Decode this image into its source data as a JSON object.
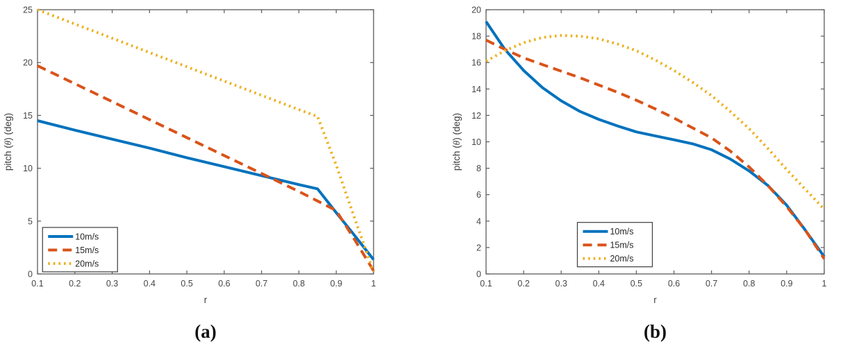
{
  "captions": {
    "a": "(a)",
    "b": "(b)"
  },
  "colors": {
    "series_blue": "#0072BD",
    "series_red": "#D95319",
    "series_yellow": "#EDB120",
    "axis_line": "#5a5a5a",
    "tick_label": "#464646",
    "axis_label": "#3d3d3d",
    "legend_border": "#3c3c3c",
    "legend_text": "#262626",
    "background": "#ffffff"
  },
  "chart_data": [
    {
      "id": "a",
      "type": "line",
      "title": "",
      "xlabel": "r",
      "ylabel": "pitch (θ) (deg)",
      "xlim": [
        0.1,
        1
      ],
      "ylim": [
        0,
        25
      ],
      "grid": false,
      "xticks": [
        "0.1",
        "0.2",
        "0.3",
        "0.4",
        "0.5",
        "0.6",
        "0.7",
        "0.8",
        "0.9",
        "1"
      ],
      "yticks": [
        "0",
        "5",
        "10",
        "15",
        "20",
        "25"
      ],
      "legend": {
        "position": "bottom-left-inside",
        "fx": 0.015,
        "fy": 0.824
      },
      "x": [
        0.1,
        0.2,
        0.3,
        0.4,
        0.5,
        0.6,
        0.7,
        0.8,
        0.85,
        0.9,
        0.95,
        1.0
      ],
      "series": [
        {
          "name": "10m/s",
          "style": "solid",
          "color": "#0072BD",
          "y": [
            14.5,
            13.6,
            12.75,
            11.9,
            11.0,
            10.15,
            9.3,
            8.45,
            8.05,
            5.8,
            3.6,
            1.35
          ]
        },
        {
          "name": "15m/s",
          "style": "dashed",
          "color": "#D95319",
          "y": [
            19.7,
            18.0,
            16.3,
            14.6,
            12.9,
            11.2,
            9.5,
            7.8,
            6.9,
            6.0,
            3.2,
            0.3
          ]
        },
        {
          "name": "20m/s",
          "style": "dotted",
          "color": "#EDB120",
          "y": [
            25.0,
            23.65,
            22.3,
            20.95,
            19.6,
            18.25,
            16.9,
            15.55,
            14.9,
            10.3,
            5.2,
            0.2
          ]
        }
      ]
    },
    {
      "id": "b",
      "type": "line",
      "title": "",
      "xlabel": "r",
      "ylabel": "pitch (θ) (deg)",
      "xlim": [
        0.1,
        1
      ],
      "ylim": [
        0,
        20
      ],
      "grid": false,
      "xticks": [
        "0.1",
        "0.2",
        "0.3",
        "0.4",
        "0.5",
        "0.6",
        "0.7",
        "0.8",
        "0.9",
        "1"
      ],
      "yticks": [
        "0",
        "2",
        "4",
        "6",
        "8",
        "10",
        "12",
        "14",
        "16",
        "18",
        "20"
      ],
      "legend": {
        "position": "bottom-center-inside",
        "fx": 0.27,
        "fy": 0.805
      },
      "x": [
        0.1,
        0.15,
        0.2,
        0.25,
        0.3,
        0.35,
        0.4,
        0.45,
        0.5,
        0.55,
        0.6,
        0.65,
        0.7,
        0.75,
        0.8,
        0.85,
        0.9,
        0.95,
        1.0
      ],
      "series": [
        {
          "name": "10m/s",
          "style": "solid",
          "color": "#0072BD",
          "y": [
            19.1,
            17.0,
            15.4,
            14.1,
            13.1,
            12.3,
            11.7,
            11.2,
            10.75,
            10.45,
            10.15,
            9.85,
            9.4,
            8.7,
            7.8,
            6.7,
            5.2,
            3.3,
            1.3
          ]
        },
        {
          "name": "15m/s",
          "style": "dashed",
          "color": "#D95319",
          "y": [
            17.7,
            17.0,
            16.35,
            15.85,
            15.35,
            14.85,
            14.3,
            13.75,
            13.15,
            12.5,
            11.8,
            11.05,
            10.3,
            9.3,
            8.1,
            6.7,
            5.1,
            3.3,
            1.15
          ]
        },
        {
          "name": "20m/s",
          "style": "dotted",
          "color": "#EDB120",
          "y": [
            16.1,
            16.9,
            17.5,
            17.9,
            18.05,
            18.0,
            17.8,
            17.4,
            16.9,
            16.2,
            15.4,
            14.5,
            13.5,
            12.3,
            11.0,
            9.5,
            7.9,
            6.4,
            4.9
          ]
        }
      ]
    }
  ]
}
